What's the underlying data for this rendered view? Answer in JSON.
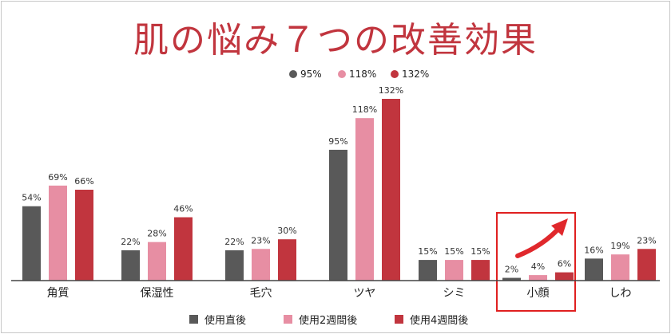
{
  "title": "肌の悩み７つの改善効果",
  "top_legend": [
    {
      "label": "95%",
      "color": "#595959"
    },
    {
      "label": "118%",
      "color": "#e78ea3"
    },
    {
      "label": "132%",
      "color": "#c1353e"
    }
  ],
  "colors": {
    "accent": "#c1353e",
    "series": [
      "#595959",
      "#e78ea3",
      "#c1353e"
    ],
    "highlight_box": "#e02020"
  },
  "highlight": {
    "category": "小顔",
    "arrow": "up-right-arrow"
  },
  "chart_data": {
    "type": "bar",
    "title": "肌の悩み７つの改善効果",
    "xlabel": "",
    "ylabel": "",
    "ylim": [
      0,
      140
    ],
    "grid": false,
    "legend_placement": "bottom",
    "categories": [
      "角質",
      "保湿性",
      "毛穴",
      "ツヤ",
      "シミ",
      "小顔",
      "しわ"
    ],
    "series": [
      {
        "name": "使用直後",
        "values": [
          54,
          22,
          22,
          95,
          15,
          2,
          16
        ],
        "labels": [
          "54%",
          "22%",
          "22%",
          "95%",
          "15%",
          "2%",
          "16%"
        ]
      },
      {
        "name": "使用2週間後",
        "values": [
          69,
          28,
          23,
          118,
          15,
          4,
          19
        ],
        "labels": [
          "69%",
          "28%",
          "23%",
          "118%",
          "15%",
          "4%",
          "19%"
        ]
      },
      {
        "name": "使用4週間後",
        "values": [
          66,
          46,
          30,
          132,
          15,
          6,
          23
        ],
        "labels": [
          "66%",
          "46%",
          "30%",
          "132%",
          "15%",
          "6%",
          "23%"
        ]
      }
    ]
  }
}
